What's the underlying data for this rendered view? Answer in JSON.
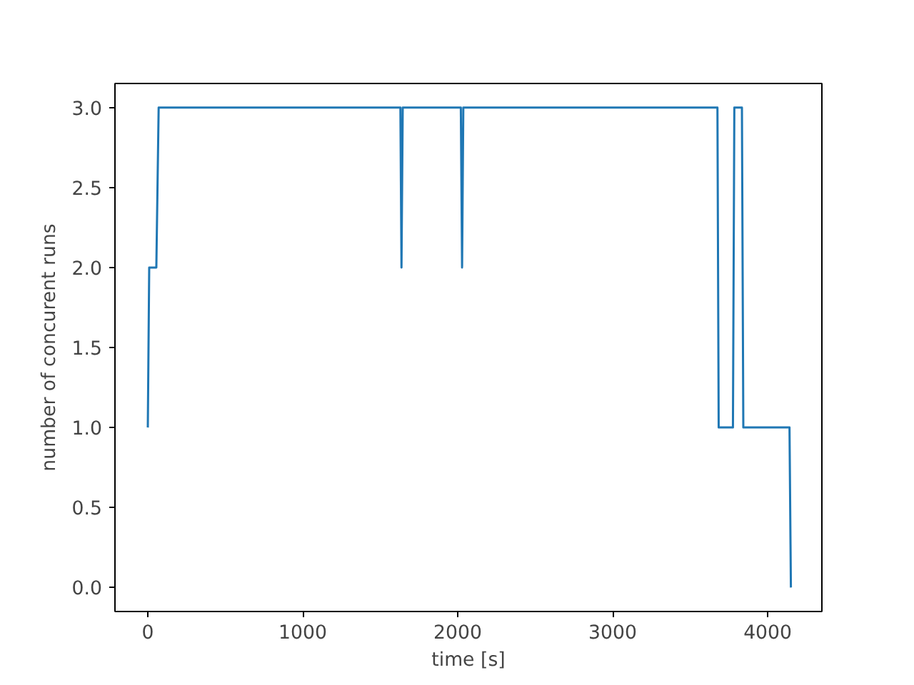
{
  "chart_data": {
    "type": "line",
    "xlabel": "time [s]",
    "ylabel": "number of concurent runs",
    "x": [
      0,
      9,
      55,
      70,
      1630,
      1637,
      1645,
      2020,
      2028,
      2036,
      3676,
      3684,
      3776,
      3785,
      3834,
      3843,
      4141,
      4150
    ],
    "series": [
      {
        "color": "#1f77b4",
        "values": [
          1,
          2,
          2,
          3,
          3,
          2,
          3,
          3,
          2,
          3,
          3,
          1,
          1,
          3,
          3,
          1,
          1,
          0
        ]
      }
    ],
    "xlim": [
      -212,
      4350
    ],
    "ylim": [
      -0.15,
      3.15
    ],
    "xticks": [
      0,
      1000,
      2000,
      3000,
      4000
    ],
    "yticks": [
      {
        "value": 0,
        "label": "0.0"
      },
      {
        "value": 0.5,
        "label": "0.5"
      },
      {
        "value": 1,
        "label": "1.0"
      },
      {
        "value": 1.5,
        "label": "1.5"
      },
      {
        "value": 2,
        "label": "2.0"
      },
      {
        "value": 2.5,
        "label": "2.5"
      },
      {
        "value": 3,
        "label": "3.0"
      }
    ],
    "grid": false
  }
}
